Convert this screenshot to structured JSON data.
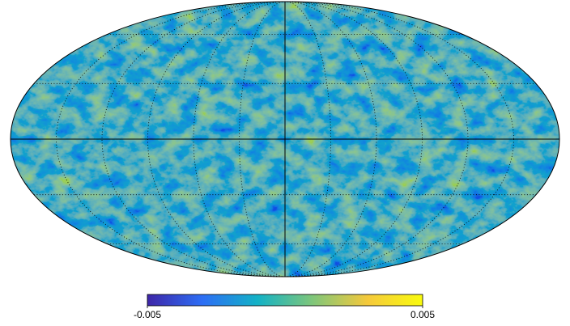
{
  "chart_data": {
    "type": "mollweide",
    "colormap": [
      "#3e26a8",
      "#2d6ef5",
      "#13b2c6",
      "#7fc67a",
      "#f5c93b",
      "#f9fb0e"
    ],
    "clim": [
      -0.005,
      0.005
    ],
    "cticks": [
      -0.005,
      0.005
    ],
    "graticule": true
  }
}
